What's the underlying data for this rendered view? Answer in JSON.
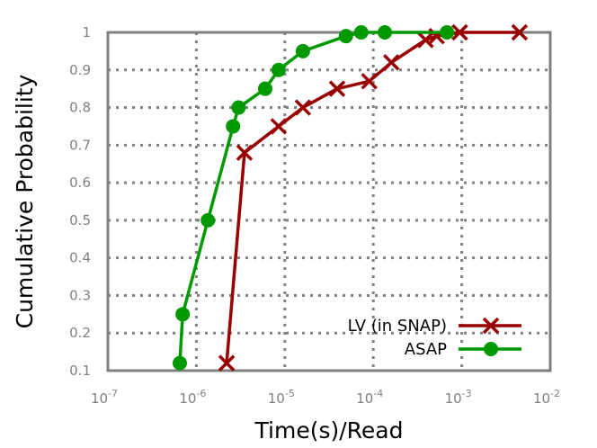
{
  "chart_data": {
    "type": "line",
    "title": "",
    "xlabel": "Time(s)/Read",
    "ylabel": "Cumulative Probability",
    "xscale": "log",
    "xlim": [
      1e-07,
      0.01
    ],
    "ylim": [
      0.1,
      1.0
    ],
    "x_ticks": [
      {
        "base": "10",
        "exp": "-7"
      },
      {
        "base": "10",
        "exp": "-6"
      },
      {
        "base": "10",
        "exp": "-5"
      },
      {
        "base": "10",
        "exp": "-4"
      },
      {
        "base": "10",
        "exp": "-3"
      },
      {
        "base": "10",
        "exp": "-2"
      }
    ],
    "y_ticks": [
      "0.1",
      "0.2",
      "0.3",
      "0.4",
      "0.5",
      "0.6",
      "0.7",
      "0.8",
      "0.9",
      "1"
    ],
    "grid": true,
    "legend_position": "bottom-right",
    "series": [
      {
        "name": "LV (in SNAP)",
        "color": "#990000",
        "marker": "x",
        "points": [
          [
            2.2e-06,
            0.12
          ],
          [
            3.5e-06,
            0.68
          ],
          [
            8.5e-06,
            0.75
          ],
          [
            1.6e-05,
            0.8
          ],
          [
            3.9e-05,
            0.85
          ],
          [
            9e-05,
            0.87
          ],
          [
            0.00016,
            0.92
          ],
          [
            0.00039,
            0.98
          ],
          [
            0.00052,
            0.99
          ],
          [
            0.00095,
            1.0
          ],
          [
            0.0045,
            1.0
          ]
        ]
      },
      {
        "name": "ASAP",
        "color": "#009900",
        "marker": "circle",
        "points": [
          [
            6.5e-07,
            0.12
          ],
          [
            7e-07,
            0.25
          ],
          [
            1.35e-06,
            0.5
          ],
          [
            2.6e-06,
            0.75
          ],
          [
            3e-06,
            0.8
          ],
          [
            6e-06,
            0.85
          ],
          [
            8.5e-06,
            0.9
          ],
          [
            1.6e-05,
            0.95
          ],
          [
            4.9e-05,
            0.99
          ],
          [
            7.3e-05,
            1.0
          ],
          [
            0.000135,
            1.0
          ],
          [
            0.00068,
            1.0
          ]
        ]
      }
    ]
  }
}
